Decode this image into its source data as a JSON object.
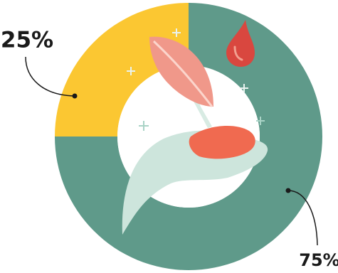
{
  "chart_data": {
    "type": "donut",
    "values": [
      75,
      25
    ],
    "value_labels": [
      "75%",
      "25%"
    ],
    "colors": [
      "#5f9a8a",
      "#fbc732"
    ]
  }
}
